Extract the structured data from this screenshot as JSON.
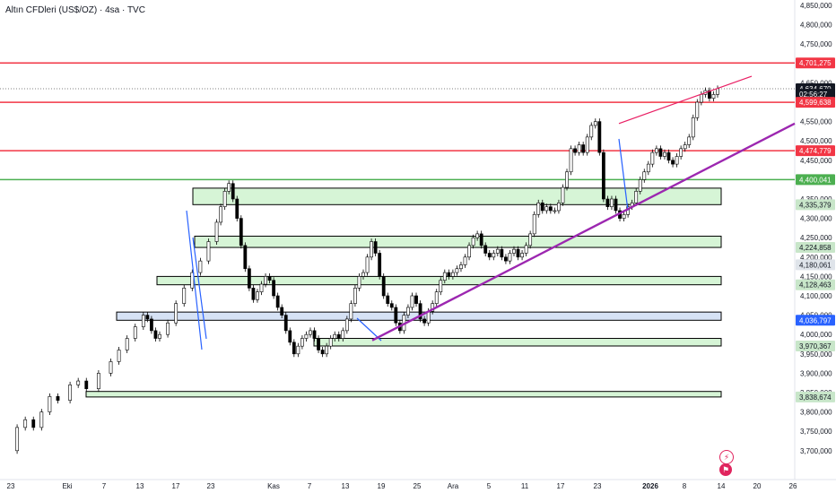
{
  "header": {
    "title": "Altın CFDleri (US$/OZ) · 4sa · TVC"
  },
  "chart_data": {
    "type": "candlestick",
    "title": "Altın CFDleri (US$/OZ) · 4sa · TVC",
    "y_ticks": [
      "4,850,000",
      "4,800,000",
      "4,750,000",
      "4,650,000",
      "4,550,000",
      "4,500,000",
      "4,450,000",
      "4,350,000",
      "4,300,000",
      "4,250,000",
      "4,200,000",
      "4,150,000",
      "4,100,000",
      "4,050,000",
      "4,000,000",
      "3,950,000",
      "3,900,000",
      "3,850,000",
      "3,800,000",
      "3,750,000",
      "3,700,000"
    ],
    "x_ticks": [
      "23",
      "Eki",
      "7",
      "13",
      "17",
      "23",
      "Kas",
      "7",
      "13",
      "19",
      "25",
      "Ara",
      "5",
      "11",
      "17",
      "23",
      "2026",
      "8",
      "14",
      "20",
      "26"
    ],
    "price_tags": [
      {
        "label": "4,701,275",
        "color": "#f23645"
      },
      {
        "label": "4,634,670",
        "color": "#131722"
      },
      {
        "label": "02:56:27",
        "color": "#131722"
      },
      {
        "label": "4,599,638",
        "color": "#f23645"
      },
      {
        "label": "4,474,779",
        "color": "#f23645"
      },
      {
        "label": "4,400,041",
        "color": "#4caf50"
      },
      {
        "label": "4,335,379",
        "color": "#c8e6c9"
      },
      {
        "label": "4,224,858",
        "color": "#c8e6c9"
      },
      {
        "label": "4,180,061",
        "color": "#dfe4ea"
      },
      {
        "label": "4,128,463",
        "color": "#c8e6c9"
      },
      {
        "label": "4,036,797",
        "color": "#2962ff"
      },
      {
        "label": "3,970,367",
        "color": "#c8e6c9"
      },
      {
        "label": "3,838,674",
        "color": "#c8e6c9"
      }
    ],
    "horizontal_levels": [
      {
        "value": 4701.275,
        "color": "#f23645"
      },
      {
        "value": 4599.638,
        "color": "#f23645"
      },
      {
        "value": 4474.779,
        "color": "#f23645"
      },
      {
        "value": 4400.041,
        "color": "#4caf50"
      }
    ],
    "last_price": 4634.67,
    "zones": [
      {
        "from": 4335.4,
        "to": 4378.0,
        "color": "green"
      },
      {
        "from": 4224.9,
        "to": 4254.0,
        "color": "green"
      },
      {
        "from": 4128.5,
        "to": 4150.0,
        "color": "green"
      },
      {
        "from": 4036.8,
        "to": 4058.0,
        "color": "blue"
      },
      {
        "from": 3970.4,
        "to": 3990.0,
        "color": "green"
      },
      {
        "from": 3838.7,
        "to": 3853.0,
        "color": "green"
      }
    ],
    "trend_lines": [
      {
        "color": "#9c27b0"
      },
      {
        "color": "#e91e63"
      }
    ],
    "y_range": [
      3680,
      4870
    ],
    "price_path": [
      [
        23,
        3700
      ],
      [
        25,
        3760
      ],
      [
        27,
        3780
      ],
      [
        29,
        3760
      ],
      [
        31,
        3800
      ],
      [
        33,
        3840
      ],
      [
        35,
        3830
      ],
      [
        38,
        3870
      ],
      [
        40,
        3880
      ],
      [
        42,
        3860
      ],
      [
        45,
        3900
      ],
      [
        48,
        3930
      ],
      [
        50,
        3960
      ],
      [
        52,
        3990
      ],
      [
        54,
        4020
      ],
      [
        56,
        4050
      ],
      [
        57,
        4040
      ],
      [
        58,
        4010
      ],
      [
        59,
        3990
      ],
      [
        60,
        4000
      ],
      [
        62,
        4030
      ],
      [
        64,
        4080
      ],
      [
        66,
        4120
      ],
      [
        68,
        4160
      ],
      [
        70,
        4190
      ],
      [
        72,
        4240
      ],
      [
        74,
        4290
      ],
      [
        75,
        4330
      ],
      [
        76,
        4370
      ],
      [
        77,
        4390
      ],
      [
        78,
        4350
      ],
      [
        79,
        4300
      ],
      [
        80,
        4230
      ],
      [
        81,
        4170
      ],
      [
        82,
        4120
      ],
      [
        83,
        4090
      ],
      [
        84,
        4110
      ],
      [
        85,
        4130
      ],
      [
        86,
        4150
      ],
      [
        87,
        4140
      ],
      [
        88,
        4100
      ],
      [
        89,
        4070
      ],
      [
        90,
        4050
      ],
      [
        91,
        4010
      ],
      [
        92,
        3980
      ],
      [
        93,
        3950
      ],
      [
        94,
        3970
      ],
      [
        95,
        3990
      ],
      [
        96,
        4000
      ],
      [
        97,
        4010
      ],
      [
        98,
        3990
      ],
      [
        99,
        3960
      ],
      [
        100,
        3950
      ],
      [
        101,
        3970
      ],
      [
        102,
        3990
      ],
      [
        103,
        4000
      ],
      [
        104,
        3990
      ],
      [
        105,
        4010
      ],
      [
        106,
        4040
      ],
      [
        107,
        4080
      ],
      [
        108,
        4120
      ],
      [
        109,
        4150
      ],
      [
        110,
        4160
      ],
      [
        111,
        4200
      ],
      [
        112,
        4240
      ],
      [
        113,
        4210
      ],
      [
        114,
        4150
      ],
      [
        115,
        4100
      ],
      [
        116,
        4080
      ],
      [
        117,
        4070
      ],
      [
        118,
        4030
      ],
      [
        119,
        4010
      ],
      [
        120,
        4050
      ],
      [
        121,
        4070
      ],
      [
        122,
        4100
      ],
      [
        123,
        4080
      ],
      [
        124,
        4040
      ],
      [
        125,
        4030
      ],
      [
        126,
        4060
      ],
      [
        127,
        4080
      ],
      [
        128,
        4110
      ],
      [
        129,
        4140
      ],
      [
        130,
        4160
      ],
      [
        131,
        4150
      ],
      [
        132,
        4160
      ],
      [
        133,
        4170
      ],
      [
        134,
        4180
      ],
      [
        135,
        4200
      ],
      [
        136,
        4230
      ],
      [
        137,
        4250
      ],
      [
        138,
        4260
      ],
      [
        139,
        4230
      ],
      [
        140,
        4210
      ],
      [
        141,
        4200
      ],
      [
        142,
        4210
      ],
      [
        143,
        4220
      ],
      [
        144,
        4200
      ],
      [
        145,
        4190
      ],
      [
        146,
        4210
      ],
      [
        147,
        4220
      ],
      [
        148,
        4200
      ],
      [
        149,
        4210
      ],
      [
        150,
        4230
      ],
      [
        151,
        4260
      ],
      [
        152,
        4310
      ],
      [
        153,
        4340
      ],
      [
        154,
        4320
      ],
      [
        155,
        4330
      ],
      [
        156,
        4320
      ],
      [
        157,
        4320
      ],
      [
        158,
        4340
      ],
      [
        159,
        4380
      ],
      [
        160,
        4420
      ],
      [
        161,
        4480
      ],
      [
        162,
        4470
      ],
      [
        163,
        4490
      ],
      [
        164,
        4470
      ],
      [
        165,
        4510
      ],
      [
        166,
        4540
      ],
      [
        167,
        4550
      ],
      [
        168,
        4470
      ],
      [
        169,
        4350
      ],
      [
        170,
        4330
      ],
      [
        171,
        4350
      ],
      [
        172,
        4320
      ],
      [
        173,
        4300
      ],
      [
        174,
        4310
      ],
      [
        175,
        4330
      ],
      [
        176,
        4340
      ],
      [
        177,
        4370
      ],
      [
        178,
        4400
      ],
      [
        179,
        4420
      ],
      [
        180,
        4440
      ],
      [
        181,
        4470
      ],
      [
        182,
        4480
      ],
      [
        183,
        4460
      ],
      [
        184,
        4470
      ],
      [
        185,
        4450
      ],
      [
        186,
        4440
      ],
      [
        187,
        4460
      ],
      [
        188,
        4480
      ],
      [
        189,
        4490
      ],
      [
        190,
        4510
      ],
      [
        191,
        4560
      ],
      [
        192,
        4600
      ],
      [
        193,
        4620
      ],
      [
        194,
        4630
      ],
      [
        195,
        4610
      ],
      [
        196,
        4620
      ],
      [
        197,
        4635
      ]
    ]
  }
}
